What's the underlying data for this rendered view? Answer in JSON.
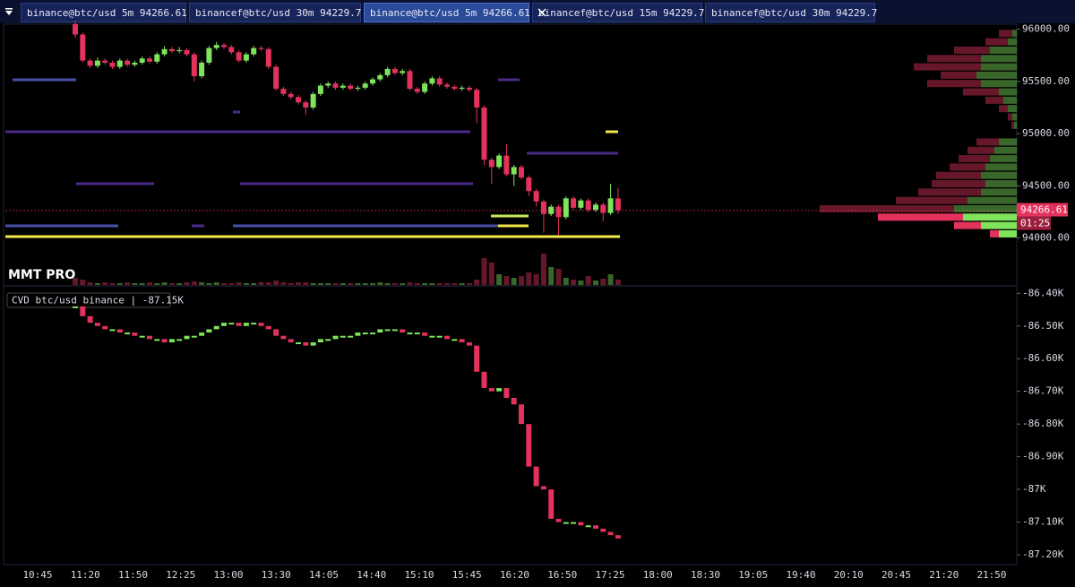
{
  "tabs": [
    "binance@btc/usd 5m 94266.61",
    "binancef@btc/usd 30m 94229.7",
    "binance@btc/usd 5m 94266.61",
    "binancef@btc/usd 15m 94229.7",
    "binancef@btc/usd 30m 94229.7"
  ],
  "brand": "MMT PRO",
  "time_axis": [
    "10:45",
    "11:20",
    "11:50",
    "12:25",
    "13:00",
    "13:30",
    "14:05",
    "14:40",
    "15:10",
    "15:45",
    "16:20",
    "16:50",
    "17:25",
    "18:00",
    "18:30",
    "19:05",
    "19:40",
    "20:10",
    "20:45",
    "21:20",
    "21:50"
  ],
  "chart_data": [
    {
      "type": "candlestick",
      "colors": {
        "up": "#7fe35c",
        "down": "#e3325c"
      },
      "ylim": [
        93550,
        96040
      ],
      "yticks": [
        {
          "value": 96000,
          "label": "96000.00"
        },
        {
          "value": 95500,
          "label": "95500.00"
        },
        {
          "value": 95000,
          "label": "95000.00"
        },
        {
          "value": 94500,
          "label": "94500.00"
        },
        {
          "value": 94000,
          "label": "94000.00"
        }
      ],
      "last_price": 94266.61,
      "countdown": "01:25",
      "candles": [
        [
          96050,
          96080,
          95920,
          95950
        ],
        [
          95950,
          95970,
          95680,
          95700
        ],
        [
          95700,
          95720,
          95630,
          95650
        ],
        [
          95650,
          95730,
          95630,
          95700
        ],
        [
          95700,
          95720,
          95660,
          95680
        ],
        [
          95680,
          95700,
          95620,
          95640
        ],
        [
          95640,
          95720,
          95620,
          95700
        ],
        [
          95700,
          95720,
          95640,
          95660
        ],
        [
          95660,
          95700,
          95640,
          95680
        ],
        [
          95680,
          95740,
          95660,
          95720
        ],
        [
          95720,
          95740,
          95670,
          95690
        ],
        [
          95690,
          95780,
          95670,
          95760
        ],
        [
          95760,
          95840,
          95740,
          95810
        ],
        [
          95810,
          95830,
          95770,
          95790
        ],
        [
          95790,
          95830,
          95770,
          95800
        ],
        [
          95800,
          95820,
          95740,
          95760
        ],
        [
          95760,
          95780,
          95500,
          95550
        ],
        [
          95550,
          95700,
          95530,
          95680
        ],
        [
          95680,
          95840,
          95660,
          95820
        ],
        [
          95820,
          95880,
          95800,
          95850
        ],
        [
          95850,
          95870,
          95810,
          95830
        ],
        [
          95830,
          95850,
          95760,
          95780
        ],
        [
          95780,
          95800,
          95680,
          95700
        ],
        [
          95700,
          95780,
          95680,
          95760
        ],
        [
          95760,
          95840,
          95740,
          95820
        ],
        [
          95820,
          95840,
          95790,
          95810
        ],
        [
          95810,
          95830,
          95620,
          95640
        ],
        [
          95640,
          95660,
          95410,
          95430
        ],
        [
          95430,
          95450,
          95360,
          95380
        ],
        [
          95380,
          95400,
          95330,
          95350
        ],
        [
          95350,
          95370,
          95280,
          95300
        ],
        [
          95300,
          95320,
          95180,
          95250
        ],
        [
          95250,
          95400,
          95230,
          95380
        ],
        [
          95380,
          95480,
          95360,
          95460
        ],
        [
          95460,
          95500,
          95440,
          95480
        ],
        [
          95480,
          95500,
          95420,
          95440
        ],
        [
          95440,
          95480,
          95420,
          95460
        ],
        [
          95460,
          95480,
          95410,
          95430
        ],
        [
          95430,
          95460,
          95410,
          95440
        ],
        [
          95440,
          95500,
          95420,
          95480
        ],
        [
          95480,
          95540,
          95460,
          95520
        ],
        [
          95520,
          95580,
          95500,
          95560
        ],
        [
          95560,
          95640,
          95540,
          95620
        ],
        [
          95620,
          95640,
          95560,
          95580
        ],
        [
          95580,
          95620,
          95560,
          95600
        ],
        [
          95600,
          95620,
          95410,
          95430
        ],
        [
          95430,
          95450,
          95380,
          95400
        ],
        [
          95400,
          95500,
          95380,
          95480
        ],
        [
          95480,
          95550,
          95460,
          95530
        ],
        [
          95530,
          95550,
          95450,
          95470
        ],
        [
          95470,
          95490,
          95430,
          95450
        ],
        [
          95450,
          95470,
          95410,
          95430
        ],
        [
          95430,
          95460,
          95410,
          95440
        ],
        [
          95440,
          95460,
          95400,
          95420
        ],
        [
          95420,
          95440,
          95100,
          95250
        ],
        [
          95250,
          95270,
          94700,
          94750
        ],
        [
          94750,
          94770,
          94520,
          94680
        ],
        [
          94680,
          94810,
          94660,
          94790
        ],
        [
          94790,
          94900,
          94590,
          94610
        ],
        [
          94610,
          94700,
          94500,
          94680
        ],
        [
          94680,
          94700,
          94560,
          94580
        ],
        [
          94580,
          94600,
          94400,
          94450
        ],
        [
          94450,
          94470,
          94300,
          94350
        ],
        [
          94350,
          94370,
          94050,
          94230
        ],
        [
          94230,
          94320,
          94210,
          94300
        ],
        [
          94300,
          94320,
          94030,
          94200
        ],
        [
          94200,
          94400,
          94180,
          94380
        ],
        [
          94380,
          94400,
          94270,
          94290
        ],
        [
          94290,
          94380,
          94270,
          94360
        ],
        [
          94360,
          94380,
          94250,
          94270
        ],
        [
          94270,
          94340,
          94250,
          94320
        ],
        [
          94320,
          94340,
          94160,
          94240
        ],
        [
          94240,
          94520,
          94220,
          94380
        ],
        [
          94380,
          94480,
          94230,
          94266.61
        ]
      ],
      "volume": [
        8,
        6,
        3,
        2,
        3,
        2,
        2,
        3,
        2,
        2,
        3,
        2,
        3,
        2,
        2,
        3,
        4,
        3,
        2,
        3,
        2,
        2,
        3,
        2,
        2,
        3,
        3,
        5,
        3,
        2,
        3,
        3,
        2,
        2,
        2,
        2,
        2,
        2,
        2,
        2,
        2,
        3,
        2,
        2,
        2,
        3,
        2,
        2,
        2,
        2,
        2,
        2,
        2,
        2,
        6,
        30,
        25,
        12,
        10,
        8,
        10,
        14,
        12,
        35,
        20,
        18,
        8,
        6,
        5,
        10,
        5,
        7,
        12,
        6
      ],
      "volume_profile": {
        "prices": [
          95960,
          95880,
          95800,
          95720,
          95640,
          95560,
          95480,
          95400,
          95320,
          95240,
          95160,
          95080,
          95000,
          94920,
          94840,
          94760,
          94680,
          94600,
          94520,
          94440,
          94360,
          94280,
          94200,
          94120,
          94040
        ],
        "buy": [
          5,
          10,
          30,
          40,
          40,
          45,
          40,
          20,
          15,
          10,
          5,
          3,
          0,
          20,
          25,
          30,
          35,
          40,
          35,
          40,
          55,
          70,
          60,
          40,
          20
        ],
        "sell": [
          15,
          25,
          40,
          60,
          75,
          40,
          60,
          40,
          20,
          10,
          5,
          3,
          0,
          25,
          30,
          35,
          40,
          50,
          60,
          70,
          80,
          150,
          95,
          30,
          10
        ]
      }
    },
    {
      "type": "candlestick",
      "title": "CVD btc/usd binance | -87.15K",
      "colors": {
        "up": "#7fe35c",
        "down": "#e3325c"
      },
      "ylim": [
        -87230,
        -86380
      ],
      "yticks": [
        {
          "value": -86400,
          "label": "-86.40K"
        },
        {
          "value": -86500,
          "label": "-86.50K"
        },
        {
          "value": -86600,
          "label": "-86.60K"
        },
        {
          "value": -86700,
          "label": "-86.70K"
        },
        {
          "value": -86800,
          "label": "-86.80K"
        },
        {
          "value": -86900,
          "label": "-86.90K"
        },
        {
          "value": -87000,
          "label": "-87K"
        },
        {
          "value": -87100,
          "label": "-87.10K"
        },
        {
          "value": -87200,
          "label": "-87.20K"
        }
      ],
      "values": [
        -86440,
        -86470,
        -86490,
        -86500,
        -86510,
        -86510,
        -86520,
        -86520,
        -86530,
        -86530,
        -86540,
        -86540,
        -86550,
        -86540,
        -86540,
        -86530,
        -86530,
        -86520,
        -86510,
        -86500,
        -86490,
        -86490,
        -86500,
        -86490,
        -86490,
        -86500,
        -86510,
        -86530,
        -86540,
        -86550,
        -86550,
        -86560,
        -86550,
        -86540,
        -86540,
        -86530,
        -86530,
        -86530,
        -86520,
        -86520,
        -86520,
        -86510,
        -86510,
        -86510,
        -86520,
        -86520,
        -86520,
        -86530,
        -86530,
        -86530,
        -86540,
        -86540,
        -86550,
        -86560,
        -86640,
        -86690,
        -86700,
        -86690,
        -86720,
        -86740,
        -86800,
        -86930,
        -86990,
        -87000,
        -87090,
        -87100,
        -87100,
        -87100,
        -87110,
        -87110,
        -87120,
        -87130,
        -87140,
        -87150
      ]
    }
  ]
}
